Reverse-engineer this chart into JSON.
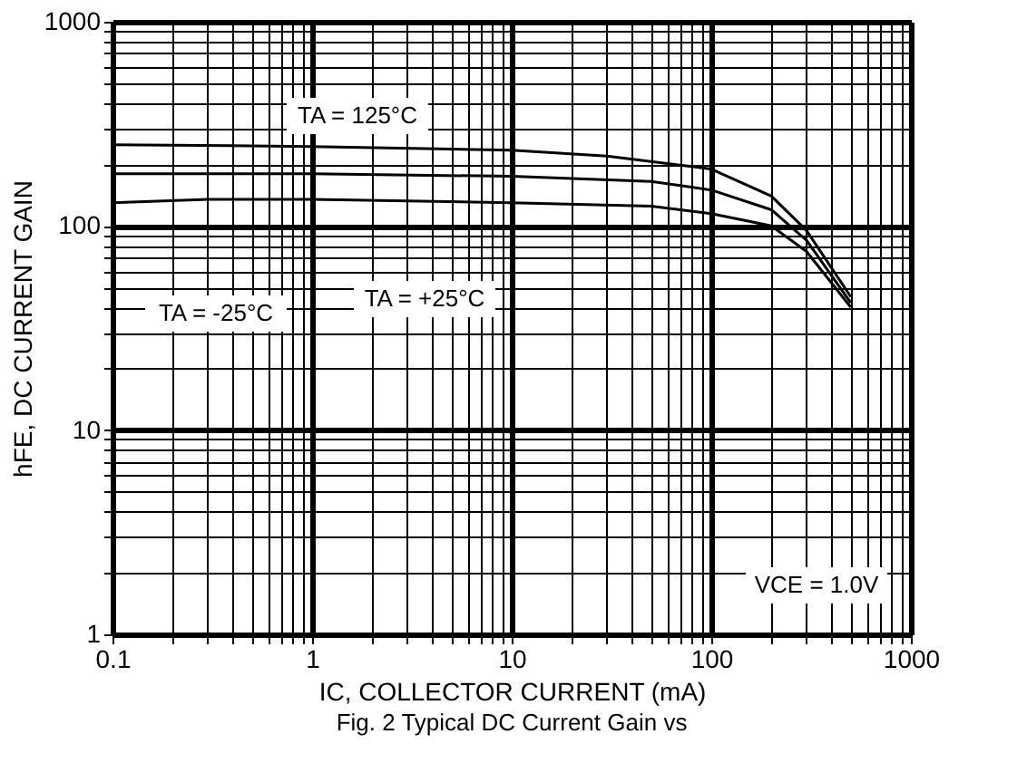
{
  "chart_data": {
    "type": "line",
    "xlabel": "IC, COLLECTOR CURRENT (mA)",
    "ylabel": "hFE, DC CURRENT GAIN",
    "log": "xy",
    "grid": true,
    "legend": false,
    "marker": "none",
    "line_style": "solid",
    "xlim": [
      0.1,
      1000
    ],
    "ylim": [
      1,
      1000
    ],
    "xticks": [
      0.1,
      {
        "value": 0.2,
        "label": null
      },
      {
        "value": 0.3,
        "label": null
      },
      {
        "value": 0.4,
        "label": null
      },
      {
        "value": 0.5,
        "label": null
      },
      {
        "value": 0.6,
        "label": null
      },
      {
        "value": 0.7,
        "label": null
      },
      {
        "value": 0.8,
        "label": null
      },
      {
        "value": 0.9,
        "label": null
      },
      1,
      {
        "value": 2,
        "label": null
      },
      {
        "value": 3,
        "label": null
      },
      {
        "value": 4,
        "label": null
      },
      {
        "value": 5,
        "label": null
      },
      {
        "value": 6,
        "label": null
      },
      {
        "value": 7,
        "label": null
      },
      {
        "value": 8,
        "label": null
      },
      {
        "value": 9,
        "label": null
      },
      10,
      {
        "value": 20,
        "label": null
      },
      {
        "value": 30,
        "label": null
      },
      {
        "value": 40,
        "label": null
      },
      {
        "value": 50,
        "label": null
      },
      {
        "value": 60,
        "label": null
      },
      {
        "value": 70,
        "label": null
      },
      {
        "value": 80,
        "label": null
      },
      {
        "value": 90,
        "label": null
      },
      100,
      {
        "value": 200,
        "label": null
      },
      {
        "value": 300,
        "label": null
      },
      {
        "value": 400,
        "label": null
      },
      {
        "value": 500,
        "label": null
      },
      {
        "value": 600,
        "label": null
      },
      {
        "value": 700,
        "label": null
      },
      {
        "value": 800,
        "label": null
      },
      {
        "value": 900,
        "label": null
      },
      1000
    ],
    "yticks": [
      1,
      {
        "value": 2,
        "label": null
      },
      {
        "value": 3,
        "label": null
      },
      {
        "value": 4,
        "label": null
      },
      {
        "value": 5,
        "label": null
      },
      {
        "value": 6,
        "label": null
      },
      {
        "value": 7,
        "label": null
      },
      {
        "value": 8,
        "label": null
      },
      {
        "value": 9,
        "label": null
      },
      10,
      {
        "value": 20,
        "label": null
      },
      {
        "value": 30,
        "label": null
      },
      {
        "value": 40,
        "label": null
      },
      {
        "value": 50,
        "label": null
      },
      {
        "value": 60,
        "label": null
      },
      {
        "value": 70,
        "label": null
      },
      {
        "value": 80,
        "label": null
      },
      {
        "value": 90,
        "label": null
      },
      100,
      {
        "value": 200,
        "label": null
      },
      {
        "value": 300,
        "label": null
      },
      {
        "value": 400,
        "label": null
      },
      {
        "value": 500,
        "label": null
      },
      {
        "value": 600,
        "label": null
      },
      {
        "value": 700,
        "label": null
      },
      {
        "value": 800,
        "label": null
      },
      {
        "value": 900,
        "label": null
      },
      1000
    ],
    "series": [
      {
        "color": "#000000",
        "x": [
          0.1,
          1,
          10,
          30,
          100,
          200,
          300,
          500
        ],
        "values": [
          250,
          245,
          235,
          220,
          190,
          140,
          95,
          45
        ]
      },
      {
        "color": "#000000",
        "x": [
          0.1,
          1,
          10,
          50,
          100,
          200,
          300,
          500
        ],
        "values": [
          180,
          180,
          175,
          165,
          150,
          120,
          85,
          42
        ]
      },
      {
        "color": "#000000",
        "x": [
          0.1,
          0.3,
          1,
          10,
          50,
          100,
          200,
          300,
          500
        ],
        "values": [
          130,
          135,
          135,
          130,
          125,
          115,
          100,
          75,
          40
        ]
      }
    ],
    "annotations": [
      "TA = 125°C",
      "TA = -25°C",
      "TA = +25°C",
      "VCE = 1.0V",
      "Fig. 2  Typical DC Current Gain vs"
    ]
  }
}
